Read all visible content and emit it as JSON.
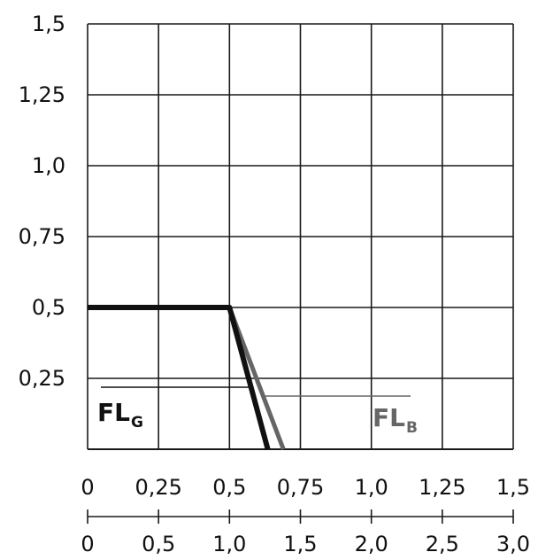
{
  "chart_data": {
    "type": "line",
    "title": "",
    "xlabel": "",
    "ylabel": "",
    "xlim": [
      0,
      1.5
    ],
    "ylim": [
      0,
      1.5
    ],
    "grid": true,
    "x_ticks": [
      "0",
      "0,25",
      "0,5",
      "0,75",
      "1,0",
      "1,25",
      "1,5"
    ],
    "y_ticks": [
      "1,5",
      "1,25",
      "1,0",
      "0,75",
      "0,5",
      "0,25"
    ],
    "secondary_x_axis": {
      "range": [
        0,
        3.0
      ],
      "ticks": [
        "0",
        "0,5",
        "1,0",
        "1,5",
        "2,0",
        "2,5",
        "3,0"
      ]
    },
    "series": [
      {
        "name_main": "FL",
        "name_sub": "G",
        "color": "#111111",
        "x": [
          0,
          0.5,
          0.635
        ],
        "y": [
          0.5,
          0.5,
          0
        ]
      },
      {
        "name_main": "FL",
        "name_sub": "B",
        "color": "#666666",
        "x": [
          0,
          0.5,
          0.69
        ],
        "y": [
          0.5,
          0.5,
          0
        ]
      }
    ]
  }
}
